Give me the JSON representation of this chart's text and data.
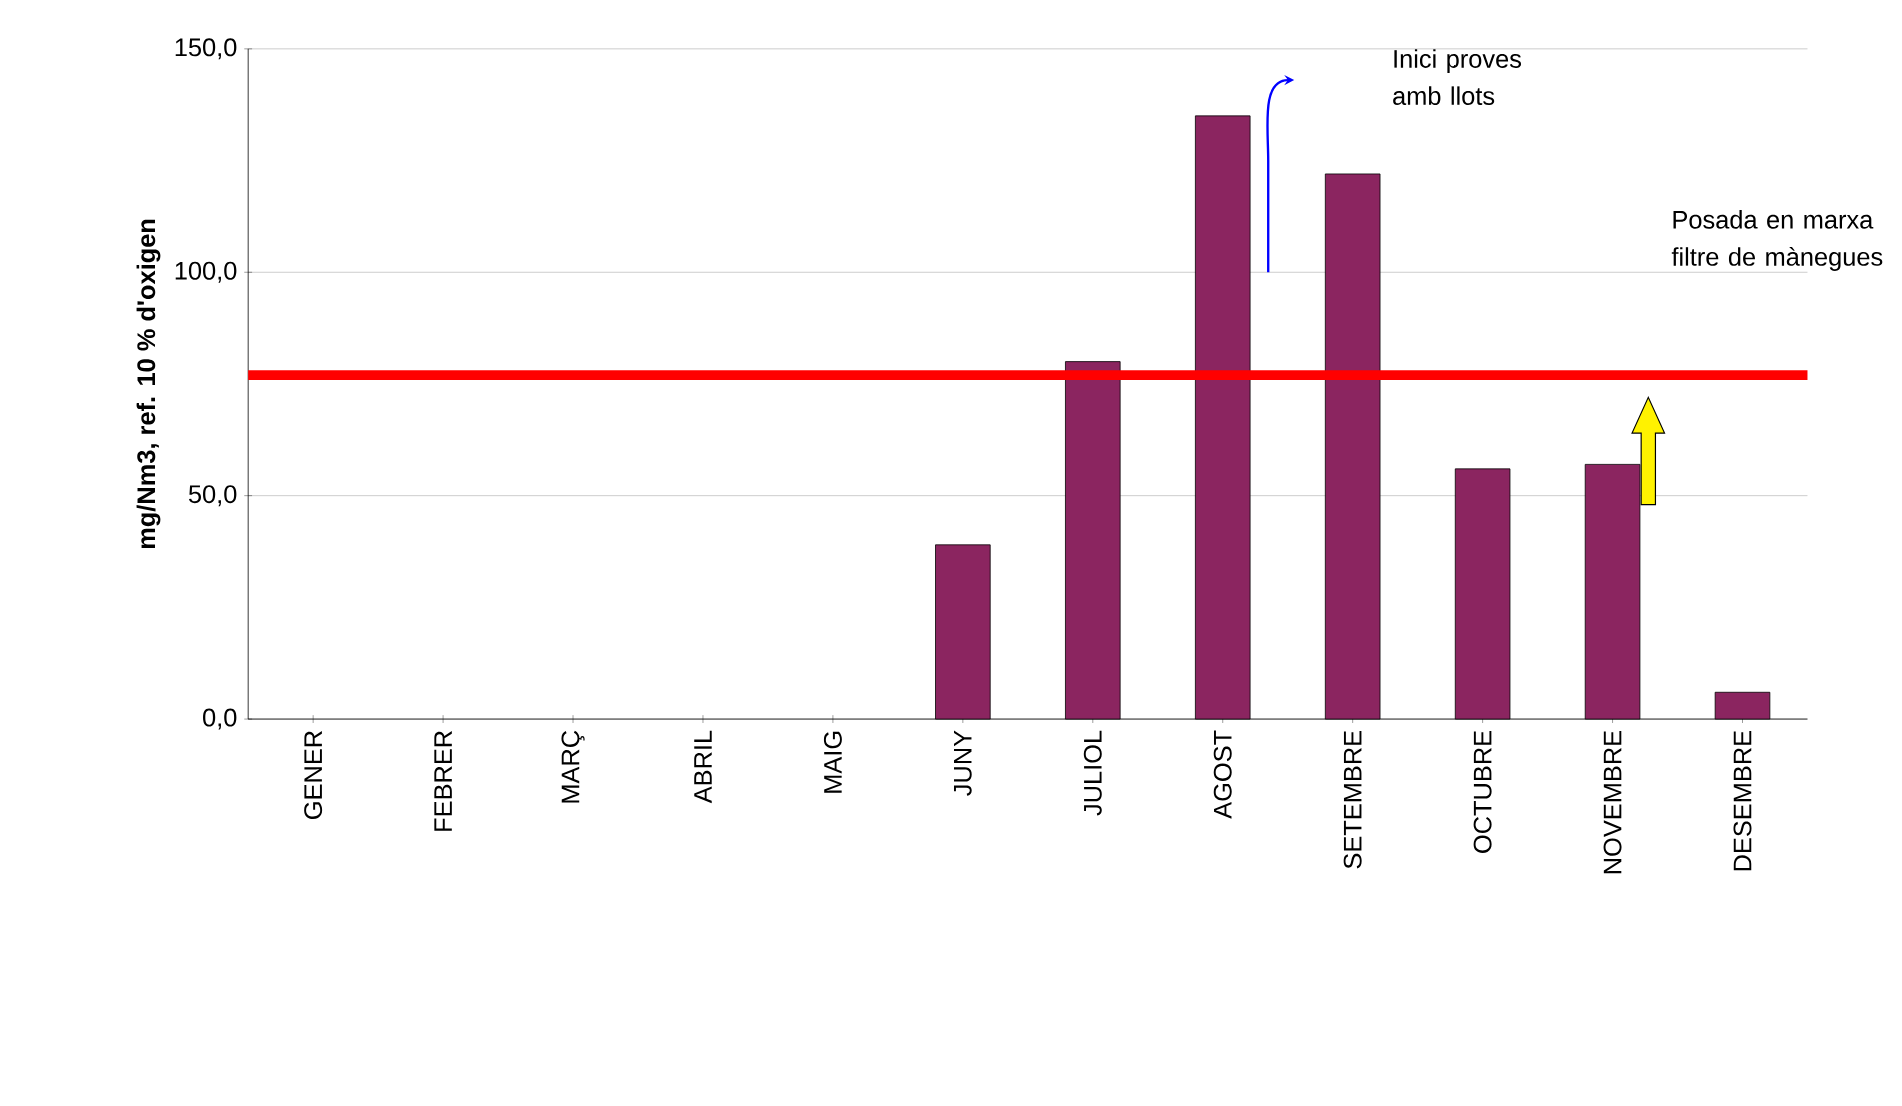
{
  "chart_data": {
    "type": "bar",
    "ylabel": "mg/Nm3, ref. 10 % d'oxigen",
    "categories": [
      "GENER",
      "FEBRER",
      "MARÇ",
      "ABRIL",
      "MAIG",
      "JUNY",
      "JULIOL",
      "AGOST",
      "SETEMBRE",
      "OCTUBRE",
      "NOVEMBRE",
      "DESEMBRE"
    ],
    "values": [
      null,
      null,
      null,
      null,
      null,
      39,
      80,
      135,
      122,
      56,
      57,
      6
    ],
    "color": "#8b2560",
    "ylim": [
      0,
      150
    ],
    "yticks": [
      {
        "value": 0,
        "label": "0,0"
      },
      {
        "value": 50,
        "label": "50,0"
      },
      {
        "value": 100,
        "label": "100,0"
      },
      {
        "value": 150,
        "label": "150,0"
      }
    ],
    "grid": "y",
    "ref_lines": [
      {
        "axis": "y",
        "value": 77,
        "color": "#ff0000"
      }
    ],
    "annotations": [
      "Inici proves amb llots",
      "Posada en marxa filtre de mànegues"
    ]
  }
}
